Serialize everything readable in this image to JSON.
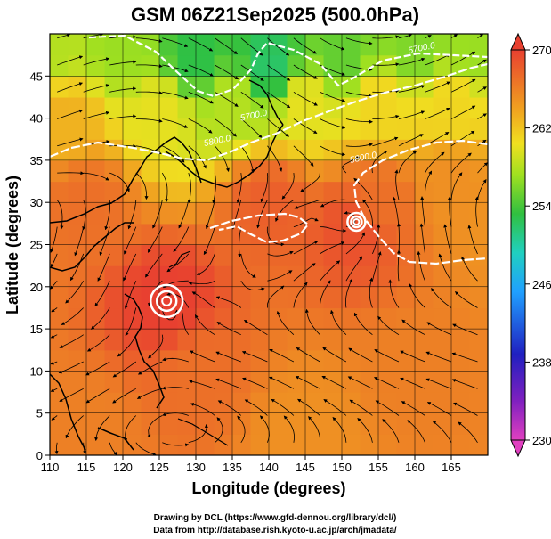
{
  "chart_data": {
    "type": "heatmap",
    "title": "GSM 06Z21Sep2025 (500.0hPa)",
    "xlabel": "Longitude (degrees)",
    "ylabel": "Latitude  (degrees)",
    "xlim": [
      110,
      170
    ],
    "ylim": [
      0,
      50
    ],
    "xticks": [
      110,
      115,
      120,
      125,
      130,
      135,
      140,
      145,
      150,
      155,
      160,
      165
    ],
    "yticks": [
      0,
      5,
      10,
      15,
      20,
      25,
      30,
      35,
      40,
      45
    ],
    "colorbar": {
      "min": 230,
      "max": 270,
      "ticks": [
        230,
        238,
        246,
        254,
        262,
        270
      ]
    },
    "contour_labels": [
      {
        "text": "5700.0",
        "lon": 138,
        "lat": 40
      },
      {
        "text": "5800.0",
        "lon": 133,
        "lat": 37
      },
      {
        "text": "5800.0",
        "lon": 153,
        "lat": 35
      },
      {
        "text": "5700.0",
        "lon": 161,
        "lat": 48
      }
    ],
    "cyclones": [
      {
        "lon": 126,
        "lat": 18.3
      },
      {
        "lon": 152,
        "lat": 27.7
      }
    ],
    "temperature_field": [
      {
        "lon": 110,
        "lat": 48,
        "value": 258
      },
      {
        "lon": 120,
        "lat": 48,
        "value": 257
      },
      {
        "lon": 130,
        "lat": 47,
        "value": 253
      },
      {
        "lon": 140,
        "lat": 46,
        "value": 252
      },
      {
        "lon": 150,
        "lat": 47,
        "value": 255
      },
      {
        "lon": 160,
        "lat": 48,
        "value": 256
      },
      {
        "lon": 168,
        "lat": 48,
        "value": 257
      },
      {
        "lon": 112,
        "lat": 40,
        "value": 263
      },
      {
        "lon": 125,
        "lat": 41,
        "value": 260
      },
      {
        "lon": 135,
        "lat": 42,
        "value": 258
      },
      {
        "lon": 145,
        "lat": 42,
        "value": 260
      },
      {
        "lon": 155,
        "lat": 42,
        "value": 261
      },
      {
        "lon": 165,
        "lat": 42,
        "value": 261
      },
      {
        "lon": 115,
        "lat": 30,
        "value": 267
      },
      {
        "lon": 140,
        "lat": 30,
        "value": 268
      },
      {
        "lon": 155,
        "lat": 30,
        "value": 267
      },
      {
        "lon": 165,
        "lat": 32,
        "value": 265
      },
      {
        "lon": 126,
        "lat": 18,
        "value": 270
      },
      {
        "lon": 152,
        "lat": 27,
        "value": 269
      },
      {
        "lon": 130,
        "lat": 10,
        "value": 267
      },
      {
        "lon": 160,
        "lat": 10,
        "value": 266
      },
      {
        "lon": 115,
        "lat": 3,
        "value": 266
      },
      {
        "lon": 145,
        "lat": 3,
        "value": 265
      }
    ],
    "credits": [
      "Drawing by DCL (https://www.gfd-dennou.org/library/dcl/)",
      "Data from http://database.rish.kyoto-u.ac.jp/arch/jmadata/"
    ]
  }
}
